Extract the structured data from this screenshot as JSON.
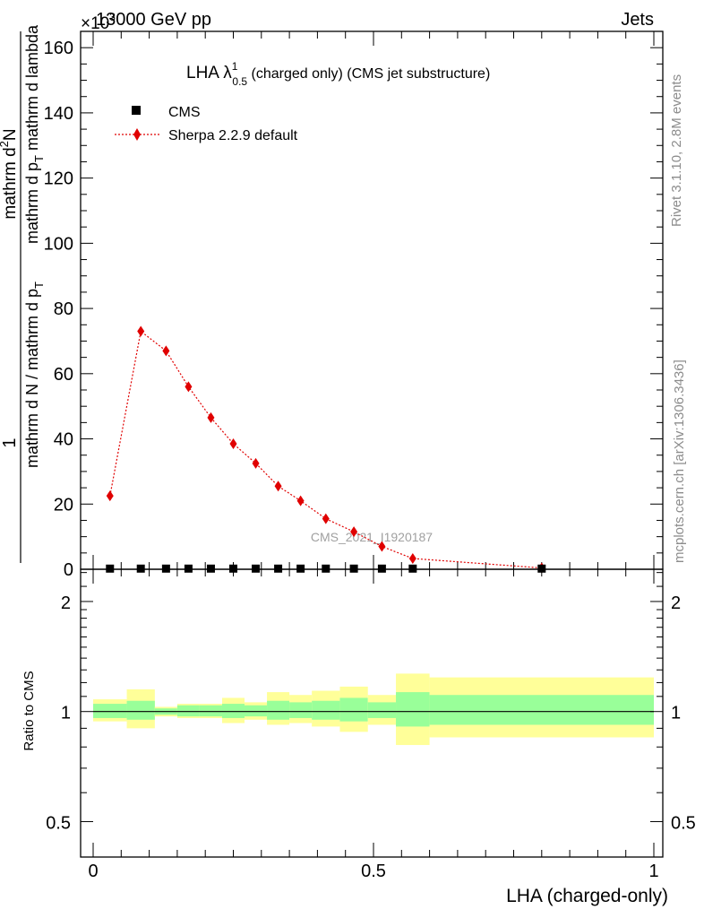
{
  "header": {
    "left": "13000 GeV pp",
    "right": "Jets",
    "exponent": "×10",
    "exponent_power": "3"
  },
  "side_text": {
    "rivet": "Rivet 3.1.10,  2.8M events",
    "mcplots": "mcplots.cern.ch [arXiv:1306.3436]"
  },
  "watermark": "CMS_2021_I1920187",
  "colors": {
    "cms": "#000000",
    "sherpa": "#e00000",
    "band_inner": "#99ff99",
    "band_outer": "#ffff99"
  },
  "chart_data": [
    {
      "type": "scatter",
      "title_main": "LHA λ",
      "title_sup": "1",
      "title_sub": "0.5",
      "title_rest": " (charged only) (CMS jet substructure)",
      "ylabel_a_num": "1",
      "ylabel_a_den": "mathrm d N / mathrm d p",
      "ylabel_a_den_sub": "T",
      "ylabel_b_num": "mathrm d",
      "ylabel_b_num_sup": "2",
      "ylabel_b_num_tail": "N",
      "ylabel_b_den": "mathrm d p",
      "ylabel_b_den_sub": "T",
      "ylabel_b_den_tail": " mathrm d lambda",
      "ylim": [
        0,
        165
      ],
      "yticks": [
        0,
        20,
        40,
        60,
        80,
        100,
        120,
        140,
        160
      ],
      "ytick_labels": [
        "0",
        "20",
        "40",
        "60",
        "80",
        "100",
        "120",
        "140",
        "160"
      ],
      "xlim": [
        0,
        1
      ],
      "legend_position": "top-left",
      "series": [
        {
          "name": "CMS",
          "marker": "square",
          "x": [
            0.03,
            0.085,
            0.13,
            0.17,
            0.21,
            0.25,
            0.29,
            0.33,
            0.37,
            0.415,
            0.465,
            0.515,
            0.57,
            0.8
          ],
          "values": [
            0.2,
            0.2,
            0.2,
            0.2,
            0.2,
            0.2,
            0.2,
            0.2,
            0.2,
            0.2,
            0.2,
            0.2,
            0.2,
            0.2
          ]
        },
        {
          "name": "Sherpa 2.2.9 default",
          "marker": "diamond",
          "x": [
            0.03,
            0.085,
            0.13,
            0.17,
            0.21,
            0.25,
            0.29,
            0.33,
            0.37,
            0.415,
            0.465,
            0.515,
            0.57,
            0.8
          ],
          "values": [
            22.5,
            73,
            67,
            56,
            46.5,
            38.5,
            32.5,
            25.5,
            21,
            15.5,
            11.5,
            7,
            3.3,
            0.4
          ]
        }
      ]
    },
    {
      "type": "area",
      "ylabel": "Ratio to CMS",
      "xlabel": "LHA (charged-only)",
      "xlim": [
        0,
        1
      ],
      "xticks": [
        0,
        0.5,
        1
      ],
      "xtick_labels": [
        "0",
        "0.5",
        "1"
      ],
      "ylim": [
        0.4,
        2.45
      ],
      "yscale": "log",
      "yticks": [
        0.5,
        1,
        2
      ],
      "ytick_labels": [
        "0.5",
        "1",
        "2"
      ],
      "reference_line": 1,
      "bins": [
        {
          "x0": 0.0,
          "x1": 0.06,
          "inner": [
            0.96,
            1.05
          ],
          "outer": [
            0.94,
            1.08
          ]
        },
        {
          "x0": 0.06,
          "x1": 0.11,
          "inner": [
            0.95,
            1.07
          ],
          "outer": [
            0.9,
            1.15
          ]
        },
        {
          "x0": 0.11,
          "x1": 0.15,
          "inner": [
            0.98,
            1.02
          ],
          "outer": [
            0.97,
            1.03
          ]
        },
        {
          "x0": 0.15,
          "x1": 0.19,
          "inner": [
            0.97,
            1.04
          ],
          "outer": [
            0.96,
            1.05
          ]
        },
        {
          "x0": 0.19,
          "x1": 0.23,
          "inner": [
            0.97,
            1.04
          ],
          "outer": [
            0.96,
            1.05
          ]
        },
        {
          "x0": 0.23,
          "x1": 0.27,
          "inner": [
            0.96,
            1.05
          ],
          "outer": [
            0.93,
            1.09
          ]
        },
        {
          "x0": 0.27,
          "x1": 0.31,
          "inner": [
            0.97,
            1.04
          ],
          "outer": [
            0.95,
            1.06
          ]
        },
        {
          "x0": 0.31,
          "x1": 0.35,
          "inner": [
            0.95,
            1.07
          ],
          "outer": [
            0.92,
            1.13
          ]
        },
        {
          "x0": 0.35,
          "x1": 0.39,
          "inner": [
            0.96,
            1.06
          ],
          "outer": [
            0.93,
            1.11
          ]
        },
        {
          "x0": 0.39,
          "x1": 0.44,
          "inner": [
            0.95,
            1.07
          ],
          "outer": [
            0.91,
            1.14
          ]
        },
        {
          "x0": 0.44,
          "x1": 0.49,
          "inner": [
            0.94,
            1.09
          ],
          "outer": [
            0.88,
            1.17
          ]
        },
        {
          "x0": 0.49,
          "x1": 0.54,
          "inner": [
            0.96,
            1.06
          ],
          "outer": [
            0.92,
            1.11
          ]
        },
        {
          "x0": 0.54,
          "x1": 0.6,
          "inner": [
            0.91,
            1.13
          ],
          "outer": [
            0.81,
            1.27
          ]
        },
        {
          "x0": 0.6,
          "x1": 1.0,
          "inner": [
            0.92,
            1.11
          ],
          "outer": [
            0.85,
            1.24
          ]
        }
      ]
    }
  ]
}
